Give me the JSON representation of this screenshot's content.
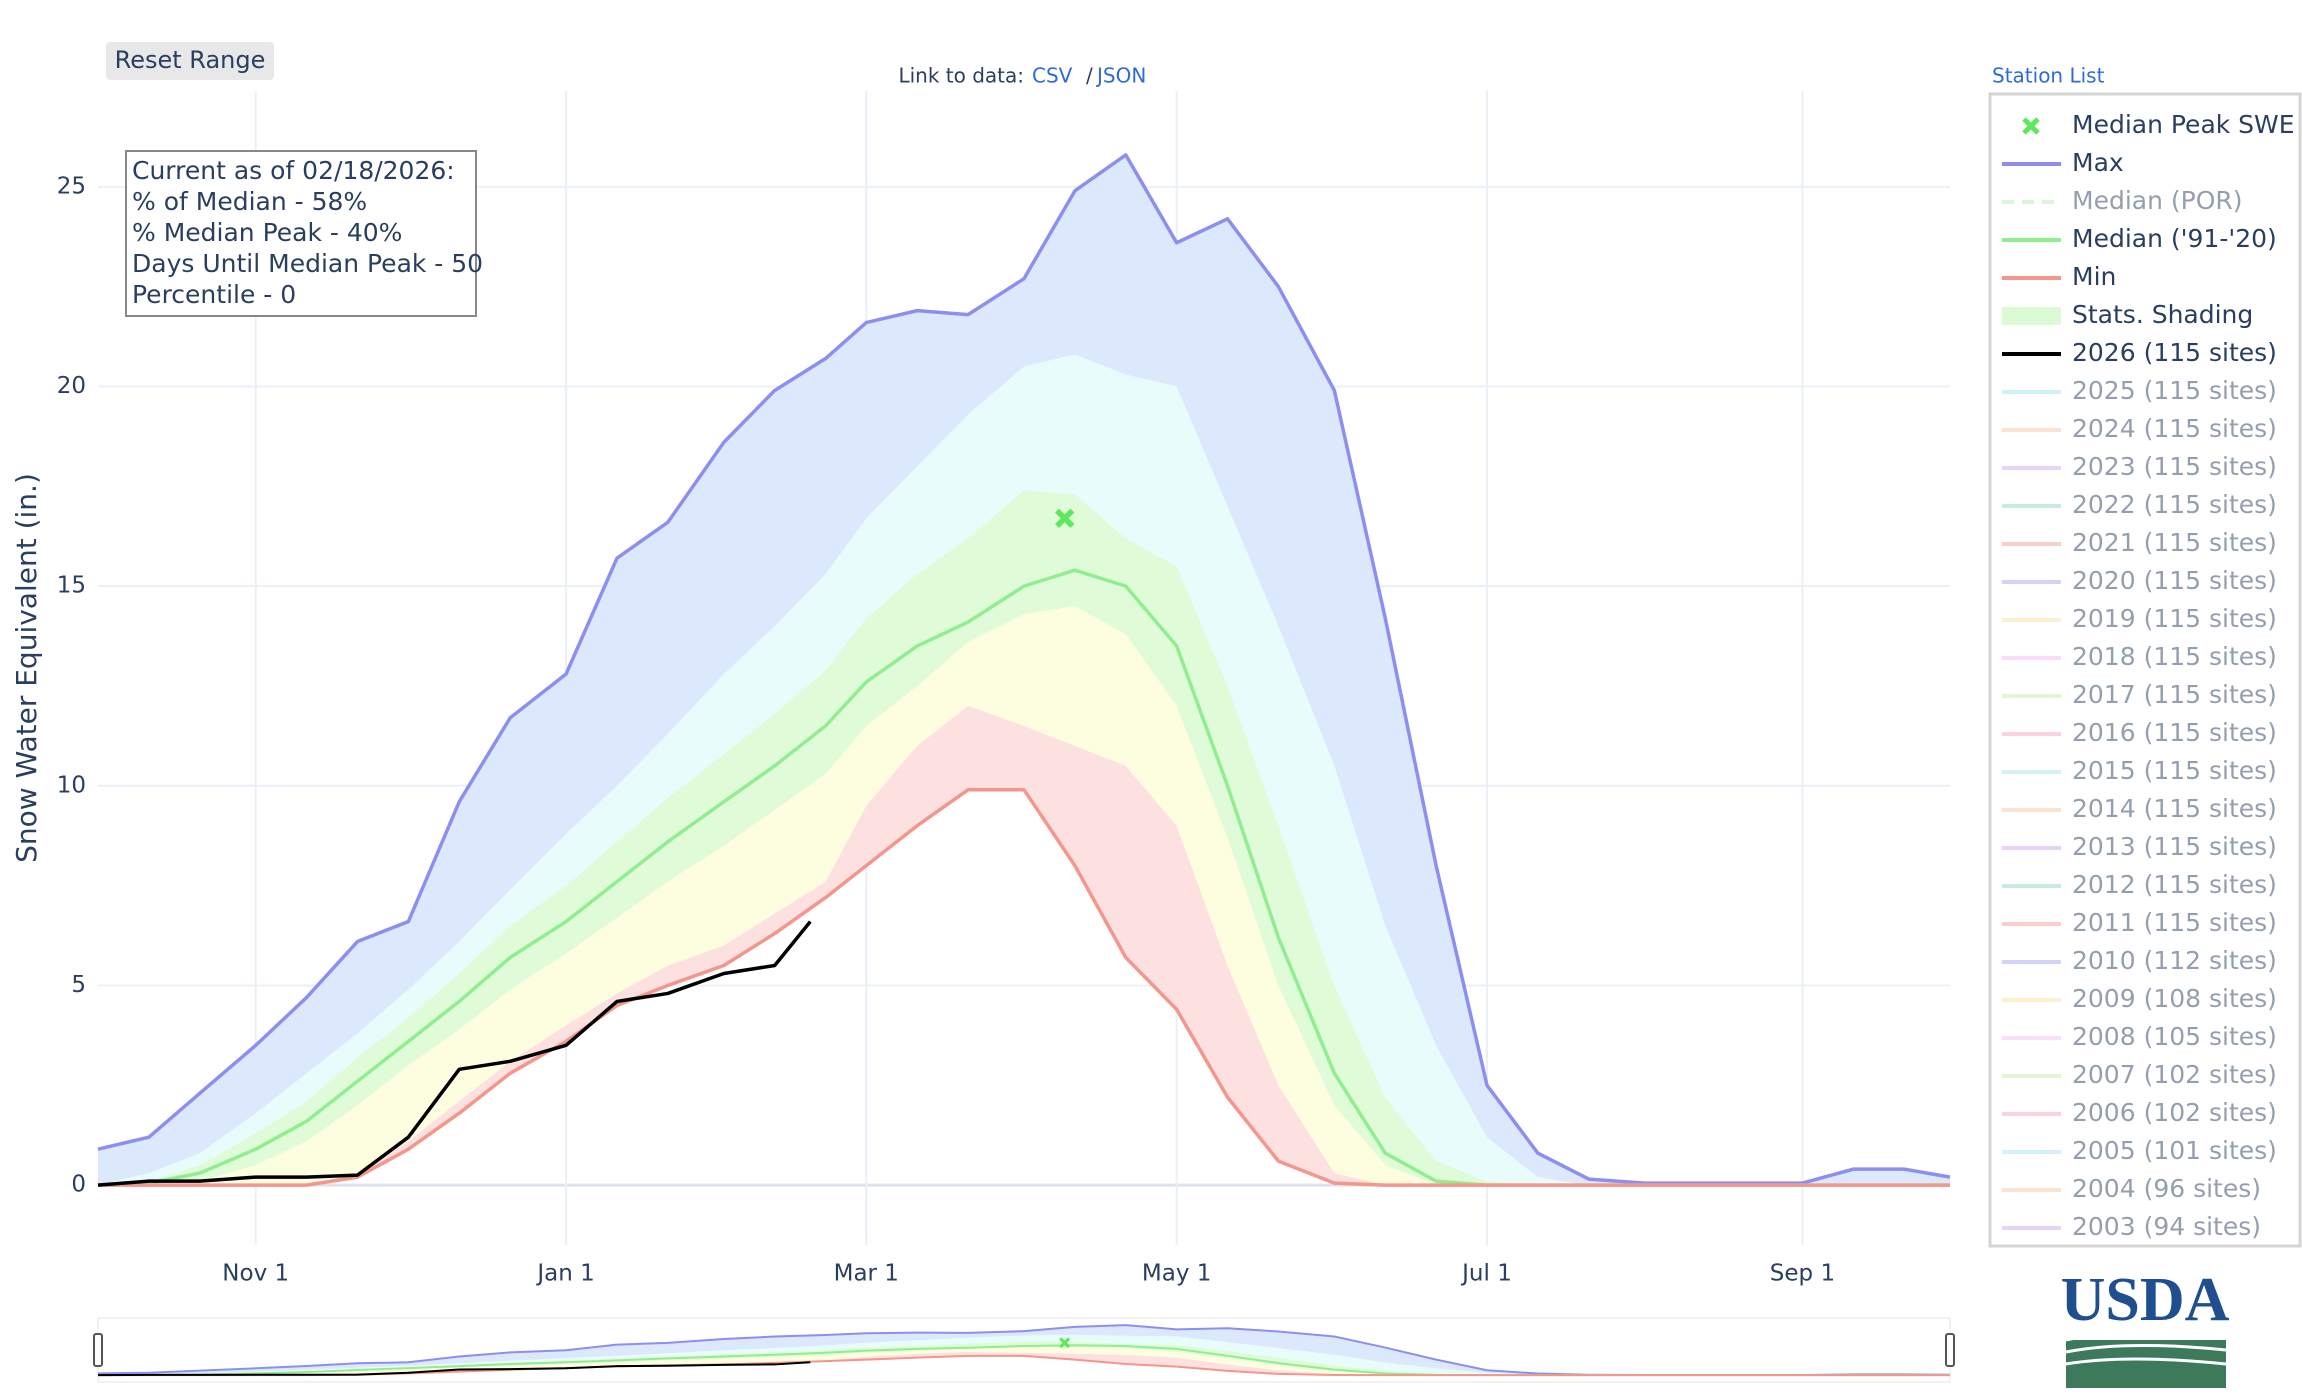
{
  "chart_data": {
    "type": "line",
    "ylabel": "Snow Water Equivalent (in.)",
    "xlim": [
      "Oct 1",
      "Sep 30"
    ],
    "xticks": [
      "Nov 1",
      "Jan 1",
      "Mar 1",
      "May 1",
      "Jul 1",
      "Sep 1"
    ],
    "ylim": [
      -1.5,
      27.4
    ],
    "yticks": [
      0,
      5,
      10,
      15,
      20,
      25
    ],
    "grid": true,
    "x": [
      "Oct 1",
      "Oct 11",
      "Oct 21",
      "Nov 1",
      "Nov 11",
      "Nov 21",
      "Dec 1",
      "Dec 11",
      "Dec 21",
      "Jan 1",
      "Jan 11",
      "Jan 21",
      "Feb 1",
      "Feb 11",
      "Feb 21",
      "Mar 1",
      "Mar 11",
      "Mar 21",
      "Apr 1",
      "Apr 11",
      "Apr 21",
      "May 1",
      "May 11",
      "May 21",
      "Jun 1",
      "Jun 11",
      "Jun 21",
      "Jul 1",
      "Jul 11",
      "Jul 21",
      "Aug 1",
      "Aug 11",
      "Aug 21",
      "Sep 1",
      "Sep 11",
      "Sep 21",
      "Sep 30"
    ],
    "series": [
      {
        "name": "Max",
        "color": "#8c8ff0",
        "visible": true,
        "values": [
          0.9,
          1.2,
          2.3,
          3.5,
          4.7,
          6.1,
          6.6,
          9.6,
          11.7,
          12.8,
          15.7,
          16.6,
          18.6,
          19.9,
          20.7,
          21.6,
          21.9,
          21.8,
          22.7,
          24.9,
          25.8,
          23.6,
          24.2,
          22.5,
          19.9,
          14.2,
          8.0,
          2.5,
          0.8,
          0.15,
          0.05,
          0.05,
          0.05,
          0.05,
          0.4,
          0.4,
          0.2
        ]
      },
      {
        "name": "Median (POR)",
        "color": "#b8ecb8",
        "visible": false,
        "dash": true
      },
      {
        "name": "Median ('91-'20)",
        "color": "#90ee90",
        "visible": true,
        "values": [
          0,
          0.05,
          0.3,
          0.9,
          1.6,
          2.6,
          3.6,
          4.6,
          5.7,
          6.6,
          7.6,
          8.6,
          9.6,
          10.5,
          11.5,
          12.6,
          13.5,
          14.1,
          15.0,
          15.4,
          15.0,
          13.5,
          10.0,
          6.2,
          2.8,
          0.8,
          0.1,
          0,
          0,
          0,
          0,
          0,
          0,
          0,
          0,
          0,
          0
        ]
      },
      {
        "name": "Min",
        "color": "#f4968c",
        "visible": true,
        "values": [
          0,
          0,
          0,
          0,
          0,
          0.2,
          0.9,
          1.8,
          2.8,
          3.6,
          4.5,
          5.0,
          5.5,
          6.3,
          7.2,
          8.0,
          9.0,
          9.9,
          9.9,
          8.0,
          5.7,
          4.4,
          2.2,
          0.6,
          0.05,
          0,
          0,
          0,
          0,
          0,
          0,
          0,
          0,
          0,
          0,
          0,
          0
        ]
      },
      {
        "name": "2026 (115 sites)",
        "color": "#000000",
        "visible": true,
        "x": [
          "Oct 1",
          "Oct 11",
          "Oct 21",
          "Nov 1",
          "Nov 11",
          "Nov 21",
          "Dec 1",
          "Dec 11",
          "Dec 21",
          "Jan 1",
          "Jan 11",
          "Jan 21",
          "Feb 1",
          "Feb 11",
          "Feb 18"
        ],
        "values": [
          0,
          0.1,
          0.1,
          0.2,
          0.2,
          0.25,
          1.2,
          2.9,
          3.1,
          3.5,
          4.6,
          4.8,
          5.3,
          5.5,
          6.6
        ]
      },
      {
        "name": "2025 (115 sites)",
        "color": "#9ce4f0",
        "visible": false
      },
      {
        "name": "2024 (115 sites)",
        "color": "#fdc9a0",
        "visible": false
      },
      {
        "name": "2023 (115 sites)",
        "color": "#d8a8f0",
        "visible": false
      },
      {
        "name": "2022 (115 sites)",
        "color": "#8fd9c0",
        "visible": false
      },
      {
        "name": "2021 (115 sites)",
        "color": "#f5a09a",
        "visible": false
      },
      {
        "name": "2020 (115 sites)",
        "color": "#a8a8f0",
        "visible": false
      },
      {
        "name": "2019 (115 sites)",
        "color": "#fde0a0",
        "visible": false
      },
      {
        "name": "2018 (115 sites)",
        "color": "#f8b8f0",
        "visible": false
      },
      {
        "name": "2017 (115 sites)",
        "color": "#c8ecb0",
        "visible": false
      },
      {
        "name": "2016 (115 sites)",
        "color": "#f8a8c0",
        "visible": false
      },
      {
        "name": "2015 (115 sites)",
        "color": "#a8e4f0",
        "visible": false
      },
      {
        "name": "2014 (115 sites)",
        "color": "#fdc8a0",
        "visible": false
      },
      {
        "name": "2013 (115 sites)",
        "color": "#d0a8f0",
        "visible": false
      },
      {
        "name": "2012 (115 sites)",
        "color": "#90d8c0",
        "visible": false
      },
      {
        "name": "2011 (115 sites)",
        "color": "#f5a098",
        "visible": false
      },
      {
        "name": "2010 (112 sites)",
        "color": "#a8a8f0",
        "visible": false
      },
      {
        "name": "2009 (108 sites)",
        "color": "#fde0a0",
        "visible": false
      },
      {
        "name": "2008 (105 sites)",
        "color": "#f8c0f0",
        "visible": false
      },
      {
        "name": "2007 (102 sites)",
        "color": "#c8ecb0",
        "visible": false
      },
      {
        "name": "2006 (102 sites)",
        "color": "#f8a8c0",
        "visible": false
      },
      {
        "name": "2005 (101 sites)",
        "color": "#a8e4f0",
        "visible": false
      },
      {
        "name": "2004 (96 sites)",
        "color": "#fdc8a0",
        "visible": false
      },
      {
        "name": "2003 (94 sites)",
        "color": "#d0a8f0",
        "visible": false
      }
    ],
    "shading": {
      "name": "Stats. Shading",
      "color": "#dcfad4",
      "colors": [
        "#fde0e0",
        "#fdfddf",
        "#e0fbd8",
        "#e8fcfb",
        "#dce8fc"
      ],
      "percentiles": [
        [
          0,
          0,
          0,
          0,
          0,
          0.3,
          1.1,
          2.1,
          3.1,
          4.0,
          4.8,
          5.5,
          6.0,
          6.8,
          7.6,
          9.5,
          11.0,
          12.0,
          11.5,
          11.0,
          10.5,
          9.0,
          5.5,
          2.5,
          0.3,
          0,
          0,
          0,
          0,
          0,
          0,
          0,
          0,
          0,
          0,
          0,
          0
        ],
        [
          0,
          0,
          0.1,
          0.5,
          1.1,
          2.0,
          3.0,
          3.9,
          4.9,
          5.8,
          6.7,
          7.6,
          8.5,
          9.4,
          10.3,
          11.5,
          12.5,
          13.6,
          14.3,
          14.5,
          13.8,
          12.0,
          8.7,
          5.0,
          2.0,
          0.5,
          0,
          0,
          0,
          0,
          0,
          0,
          0,
          0,
          0,
          0,
          0
        ],
        [
          0,
          0.1,
          0.5,
          1.3,
          2.1,
          3.2,
          4.2,
          5.3,
          6.5,
          7.5,
          8.6,
          9.7,
          10.8,
          11.8,
          12.9,
          14.2,
          15.3,
          16.2,
          17.4,
          17.3,
          16.2,
          15.5,
          12.5,
          9.0,
          5.0,
          2.2,
          0.6,
          0.1,
          0,
          0,
          0,
          0,
          0,
          0,
          0,
          0,
          0
        ],
        [
          0,
          0.3,
          0.8,
          1.8,
          2.8,
          3.8,
          4.9,
          6.1,
          7.4,
          8.8,
          10.0,
          11.3,
          12.8,
          14.0,
          15.3,
          16.7,
          18.0,
          19.3,
          20.5,
          20.8,
          20.3,
          20.0,
          17.0,
          14.0,
          10.5,
          6.5,
          3.5,
          1.2,
          0.2,
          0,
          0,
          0,
          0,
          0,
          0,
          0,
          0
        ]
      ]
    },
    "peak": {
      "name": "Median Peak SWE",
      "x": "Apr 9",
      "value": 16.7,
      "color": "#5ee85e"
    },
    "annotation": [
      "Current as of 02/18/2026:",
      "% of Median - 58%",
      "% Median Peak - 40%",
      "Days Until Median Peak - 50",
      "Percentile - 0"
    ]
  },
  "controls": {
    "reset": "Reset Range",
    "link_label": "Link to data:",
    "csv": "CSV",
    "separator": "/",
    "json": "JSON",
    "station_list": "Station List",
    "logo": "USDA"
  }
}
